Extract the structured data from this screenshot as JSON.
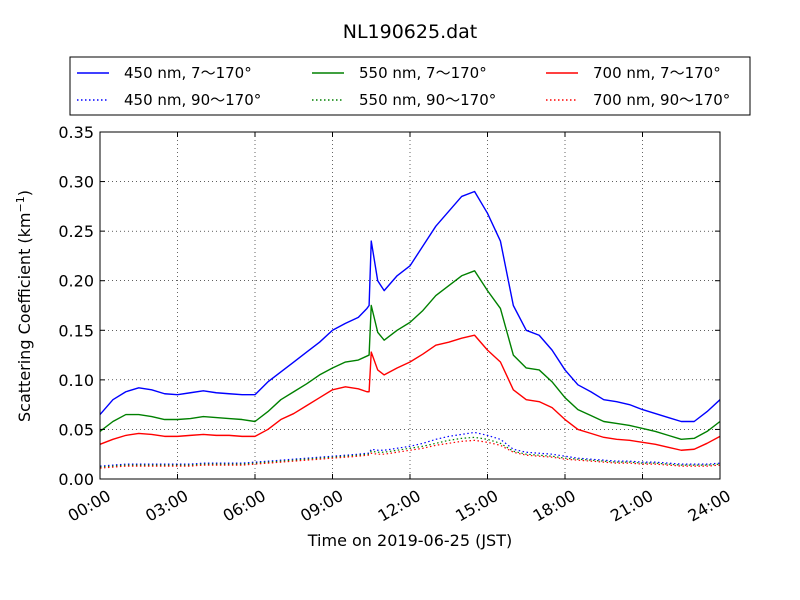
{
  "chart_data": {
    "type": "line",
    "title": "NL190625.dat",
    "xlabel": "Time on 2019-06-25 (JST)",
    "ylabel_main": "Scattering Coefficient (km",
    "ylabel_sup": "−1",
    "ylabel_close": ")",
    "xlim": [
      "00:00",
      "24:00"
    ],
    "ylim": [
      0,
      0.35
    ],
    "grid": true,
    "legend_position": "top",
    "x_ticks": [
      "00:00",
      "03:00",
      "06:00",
      "09:00",
      "12:00",
      "15:00",
      "18:00",
      "21:00",
      "24:00"
    ],
    "y_ticks": [
      "0.00",
      "0.05",
      "0.10",
      "0.15",
      "0.20",
      "0.25",
      "0.30",
      "0.35"
    ],
    "x": [
      "00:00",
      "00:30",
      "01:00",
      "01:30",
      "02:00",
      "02:30",
      "03:00",
      "03:30",
      "04:00",
      "04:30",
      "05:00",
      "05:30",
      "06:00",
      "06:30",
      "07:00",
      "07:30",
      "08:00",
      "08:30",
      "09:00",
      "09:30",
      "10:00",
      "10:20",
      "10:25",
      "10:30",
      "10:45",
      "11:00",
      "11:30",
      "12:00",
      "12:30",
      "13:00",
      "13:30",
      "14:00",
      "14:30",
      "15:00",
      "15:30",
      "16:00",
      "16:30",
      "17:00",
      "17:30",
      "18:00",
      "18:30",
      "19:00",
      "19:30",
      "20:00",
      "20:30",
      "21:00",
      "21:30",
      "22:00",
      "22:30",
      "23:00",
      "23:30",
      "24:00"
    ],
    "series": [
      {
        "name": "450 nm, 7～170°",
        "color": "#0000ff",
        "style": "solid",
        "values": [
          0.065,
          0.08,
          0.088,
          0.092,
          0.09,
          0.086,
          0.085,
          0.087,
          0.089,
          0.087,
          0.086,
          0.085,
          0.085,
          0.098,
          0.108,
          0.118,
          0.128,
          0.138,
          0.15,
          0.157,
          0.163,
          0.172,
          0.175,
          0.24,
          0.2,
          0.19,
          0.205,
          0.215,
          0.235,
          0.255,
          0.27,
          0.285,
          0.29,
          0.268,
          0.24,
          0.175,
          0.15,
          0.145,
          0.13,
          0.11,
          0.095,
          0.088,
          0.08,
          0.078,
          0.075,
          0.07,
          0.066,
          0.062,
          0.058,
          0.058,
          0.068,
          0.08
        ]
      },
      {
        "name": "550 nm, 7～170°",
        "color": "#008000",
        "style": "solid",
        "values": [
          0.048,
          0.058,
          0.065,
          0.065,
          0.063,
          0.06,
          0.06,
          0.061,
          0.063,
          0.062,
          0.061,
          0.06,
          0.058,
          0.068,
          0.08,
          0.088,
          0.096,
          0.105,
          0.112,
          0.118,
          0.12,
          0.124,
          0.125,
          0.175,
          0.148,
          0.14,
          0.15,
          0.158,
          0.17,
          0.185,
          0.195,
          0.205,
          0.21,
          0.19,
          0.172,
          0.125,
          0.112,
          0.11,
          0.098,
          0.082,
          0.07,
          0.064,
          0.058,
          0.056,
          0.054,
          0.051,
          0.048,
          0.044,
          0.04,
          0.041,
          0.048,
          0.058
        ]
      },
      {
        "name": "700 nm, 7～170°",
        "color": "#ff0000",
        "style": "solid",
        "values": [
          0.035,
          0.04,
          0.044,
          0.046,
          0.045,
          0.043,
          0.043,
          0.044,
          0.045,
          0.044,
          0.044,
          0.043,
          0.043,
          0.05,
          0.06,
          0.066,
          0.074,
          0.082,
          0.09,
          0.093,
          0.091,
          0.088,
          0.088,
          0.128,
          0.11,
          0.105,
          0.112,
          0.118,
          0.126,
          0.135,
          0.138,
          0.142,
          0.145,
          0.13,
          0.118,
          0.09,
          0.08,
          0.078,
          0.072,
          0.06,
          0.05,
          0.046,
          0.042,
          0.04,
          0.039,
          0.037,
          0.035,
          0.032,
          0.029,
          0.03,
          0.036,
          0.043
        ]
      },
      {
        "name": "450 nm, 90～170°",
        "color": "#0000ff",
        "style": "dotted",
        "values": [
          0.013,
          0.014,
          0.015,
          0.015,
          0.015,
          0.015,
          0.015,
          0.015,
          0.016,
          0.016,
          0.016,
          0.016,
          0.017,
          0.018,
          0.019,
          0.02,
          0.021,
          0.022,
          0.023,
          0.024,
          0.025,
          0.026,
          0.026,
          0.03,
          0.029,
          0.029,
          0.031,
          0.033,
          0.036,
          0.04,
          0.043,
          0.045,
          0.047,
          0.044,
          0.04,
          0.03,
          0.027,
          0.026,
          0.025,
          0.023,
          0.021,
          0.02,
          0.019,
          0.018,
          0.018,
          0.017,
          0.017,
          0.016,
          0.015,
          0.015,
          0.015,
          0.016
        ]
      },
      {
        "name": "550 nm, 90～170°",
        "color": "#008000",
        "style": "dotted",
        "values": [
          0.012,
          0.013,
          0.014,
          0.014,
          0.014,
          0.014,
          0.014,
          0.014,
          0.015,
          0.015,
          0.015,
          0.015,
          0.016,
          0.017,
          0.018,
          0.019,
          0.02,
          0.021,
          0.022,
          0.023,
          0.024,
          0.025,
          0.025,
          0.028,
          0.027,
          0.027,
          0.029,
          0.031,
          0.033,
          0.036,
          0.039,
          0.041,
          0.042,
          0.04,
          0.036,
          0.028,
          0.025,
          0.024,
          0.023,
          0.021,
          0.02,
          0.019,
          0.018,
          0.017,
          0.017,
          0.016,
          0.016,
          0.015,
          0.014,
          0.014,
          0.014,
          0.015
        ]
      },
      {
        "name": "700 nm, 90～170°",
        "color": "#ff0000",
        "style": "dotted",
        "values": [
          0.011,
          0.012,
          0.013,
          0.013,
          0.013,
          0.013,
          0.013,
          0.013,
          0.014,
          0.014,
          0.014,
          0.014,
          0.015,
          0.016,
          0.017,
          0.018,
          0.019,
          0.02,
          0.021,
          0.022,
          0.023,
          0.024,
          0.024,
          0.026,
          0.025,
          0.025,
          0.027,
          0.029,
          0.031,
          0.034,
          0.036,
          0.038,
          0.039,
          0.037,
          0.034,
          0.027,
          0.024,
          0.023,
          0.022,
          0.02,
          0.019,
          0.018,
          0.017,
          0.016,
          0.016,
          0.015,
          0.015,
          0.014,
          0.013,
          0.013,
          0.013,
          0.014
        ]
      }
    ]
  }
}
